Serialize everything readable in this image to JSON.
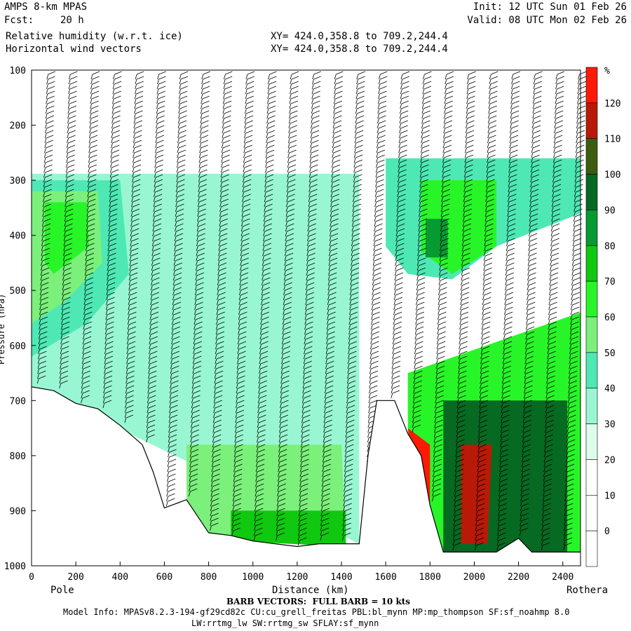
{
  "header": {
    "model": "AMPS 8-km MPAS",
    "fcst_label": "Fcst:",
    "fcst_value": "20 h",
    "field1": "Relative humidity (w.r.t. ice)",
    "field2": "Horizontal wind vectors",
    "init": "Init: 12 UTC Sun 01 Feb 26",
    "valid": "Valid: 08 UTC Mon 02 Feb 26",
    "xy1": "XY= 424.0,358.8 to 709.2,244.4",
    "xy2": "XY= 424.0,358.8 to 709.2,244.4"
  },
  "footer": {
    "barb_note": "BARB VECTORS:  FULL BARB = 10 kts",
    "model_info": "Model Info: MPASv8.2.3-194-gf29cd82c CU:cu_grell_freitas PBL:bl_mynn MP:mp_thompson SF:sf_noahmp 8.0",
    "model_info2": "LW:rrtmg_lw SW:rrtmg_sw SFLAY:sf_mynn"
  },
  "chart_data": {
    "type": "heatmap",
    "xlabel": "Distance (km)",
    "ylabel": "Pressure (hPa)",
    "x_start_label": "Pole",
    "x_end_label": "Rothera",
    "xlim": [
      0,
      2480
    ],
    "ylim": [
      1000,
      100
    ],
    "x_ticks": [
      0,
      200,
      400,
      600,
      800,
      1000,
      1200,
      1400,
      1600,
      1800,
      2000,
      2200,
      2400
    ],
    "y_ticks": [
      100,
      200,
      300,
      400,
      500,
      600,
      700,
      800,
      900,
      1000
    ],
    "colorbar": {
      "unit": "%",
      "levels": [
        0,
        10,
        20,
        30,
        40,
        50,
        60,
        70,
        80,
        90,
        100,
        110,
        120
      ],
      "colors": [
        "#ffffff",
        "#ffffff",
        "#ffffff",
        "#ddfde9",
        "#98f7d2",
        "#4ee8b4",
        "#7bf07b",
        "#28f528",
        "#0fc80f",
        "#069a32",
        "#076a22",
        "#3c5d10",
        "#b81a07",
        "#ff1a05"
      ]
    },
    "terrain_pressure": [
      [
        0,
        675
      ],
      [
        100,
        682
      ],
      [
        200,
        705
      ],
      [
        300,
        715
      ],
      [
        400,
        745
      ],
      [
        500,
        780
      ],
      [
        550,
        830
      ],
      [
        600,
        895
      ],
      [
        700,
        880
      ],
      [
        800,
        940
      ],
      [
        900,
        945
      ],
      [
        1000,
        955
      ],
      [
        1100,
        960
      ],
      [
        1200,
        965
      ],
      [
        1300,
        960
      ],
      [
        1400,
        960
      ],
      [
        1480,
        960
      ],
      [
        1520,
        800
      ],
      [
        1560,
        700
      ],
      [
        1640,
        700
      ],
      [
        1700,
        760
      ],
      [
        1760,
        800
      ],
      [
        1800,
        890
      ],
      [
        1860,
        975
      ],
      [
        2000,
        975
      ],
      [
        2100,
        975
      ],
      [
        2200,
        950
      ],
      [
        2260,
        975
      ],
      [
        2340,
        975
      ],
      [
        2420,
        975
      ],
      [
        2480,
        975
      ]
    ],
    "rh_regions": [
      {
        "level": 30,
        "points": [
          [
            0,
            288
          ],
          [
            1480,
            288
          ],
          [
            1480,
            960
          ],
          [
            0,
            675
          ]
        ]
      },
      {
        "level": 40,
        "points": [
          [
            0,
            300
          ],
          [
            400,
            300
          ],
          [
            440,
            470
          ],
          [
            250,
            560
          ],
          [
            0,
            620
          ]
        ]
      },
      {
        "level": 50,
        "points": [
          [
            0,
            320
          ],
          [
            300,
            320
          ],
          [
            320,
            450
          ],
          [
            150,
            520
          ],
          [
            0,
            560
          ]
        ]
      },
      {
        "level": 60,
        "points": [
          [
            60,
            340
          ],
          [
            250,
            340
          ],
          [
            260,
            420
          ],
          [
            100,
            470
          ],
          [
            60,
            450
          ]
        ]
      },
      {
        "level": 40,
        "points": [
          [
            1600,
            260
          ],
          [
            2480,
            260
          ],
          [
            2480,
            360
          ],
          [
            2100,
            420
          ],
          [
            1900,
            480
          ],
          [
            1700,
            470
          ],
          [
            1600,
            420
          ]
        ]
      },
      {
        "level": 60,
        "points": [
          [
            1760,
            300
          ],
          [
            2100,
            300
          ],
          [
            2100,
            420
          ],
          [
            1900,
            470
          ],
          [
            1760,
            430
          ]
        ]
      },
      {
        "level": 80,
        "points": [
          [
            1780,
            370
          ],
          [
            1880,
            370
          ],
          [
            1880,
            440
          ],
          [
            1780,
            440
          ]
        ]
      },
      {
        "level": 60,
        "points": [
          [
            1700,
            650
          ],
          [
            2480,
            540
          ],
          [
            2480,
            975
          ],
          [
            1800,
            975
          ],
          [
            1700,
            760
          ]
        ]
      },
      {
        "level": 90,
        "points": [
          [
            1860,
            700
          ],
          [
            2420,
            700
          ],
          [
            2420,
            975
          ],
          [
            1860,
            975
          ]
        ]
      },
      {
        "level": 110,
        "points": [
          [
            1940,
            780
          ],
          [
            2080,
            780
          ],
          [
            2060,
            960
          ],
          [
            1940,
            960
          ]
        ]
      },
      {
        "level": 120,
        "points": [
          [
            1700,
            750
          ],
          [
            1800,
            780
          ],
          [
            1800,
            900
          ],
          [
            1720,
            800
          ]
        ]
      },
      {
        "level": 50,
        "points": [
          [
            700,
            780
          ],
          [
            1400,
            780
          ],
          [
            1420,
            960
          ],
          [
            700,
            940
          ]
        ]
      },
      {
        "level": 70,
        "points": [
          [
            900,
            900
          ],
          [
            1420,
            900
          ],
          [
            1420,
            965
          ],
          [
            900,
            955
          ]
        ]
      }
    ],
    "barb_x_km": [
      0,
      100,
      200,
      300,
      400,
      500,
      600,
      700,
      800,
      900,
      1000,
      1100,
      1200,
      1300,
      1400,
      1500,
      1600,
      1700,
      1800,
      1900,
      2000,
      2100,
      2200,
      2300,
      2400
    ]
  }
}
